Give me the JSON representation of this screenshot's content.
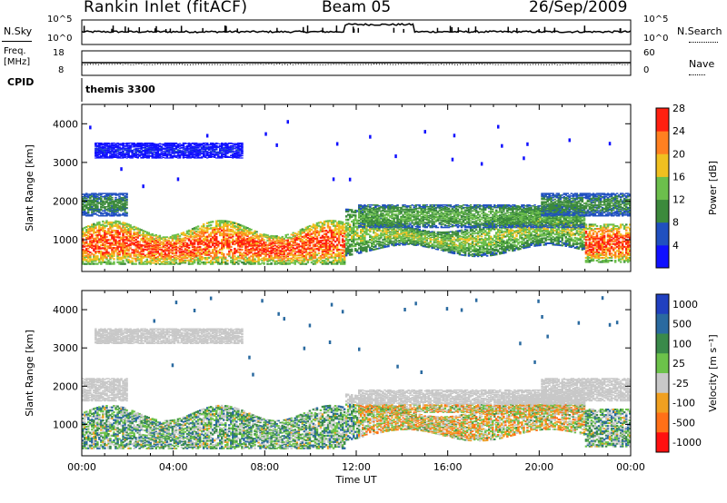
{
  "header": {
    "station": "Rankin Inlet (fitACF)",
    "beam": "Beam 05",
    "date": "26/Sep/2009"
  },
  "top_panels": {
    "nsky_label": "N.Sky",
    "nsky_ticks_left": [
      "10^5",
      "10^0"
    ],
    "nsky_ticks_right": [
      "10^5",
      "10^0"
    ],
    "nsearch_label": "N.Search",
    "freq_label": "Freq.",
    "freq_unit": "[MHz]",
    "freq_ticks": [
      "18",
      "8"
    ],
    "nave_ticks": [
      "60",
      "0"
    ],
    "nave_label": "Nave",
    "cpid_label": "CPID",
    "cpid_value": "themis 3300"
  },
  "chart_data": [
    {
      "type": "heatmap",
      "name": "power",
      "ylabel": "Slant Range [km]",
      "yticks": [
        "1000",
        "2000",
        "3000",
        "4000"
      ],
      "ylim": [
        180,
        4500
      ],
      "xlim_hours": [
        0,
        24
      ],
      "colorbar_label": "Power [dB]",
      "colorbar_ticks": [
        "4",
        "8",
        "12",
        "16",
        "20",
        "24",
        "28"
      ],
      "colorbar_colors": [
        "#1010ff",
        "#2050c0",
        "#3c8a3c",
        "#6cbf4c",
        "#f0c020",
        "#ff8020",
        "#ff2010"
      ]
    },
    {
      "type": "heatmap",
      "name": "velocity",
      "ylabel": "Slant Range [km]",
      "yticks": [
        "1000",
        "2000",
        "3000",
        "4000"
      ],
      "ylim": [
        180,
        4500
      ],
      "xlim_hours": [
        0,
        24
      ],
      "xlabel": "Time UT",
      "xticks": [
        "00:00",
        "04:00",
        "08:00",
        "12:00",
        "16:00",
        "20:00",
        "00:00"
      ],
      "colorbar_label": "Velocity [m s⁻¹]",
      "colorbar_ticks": [
        "1000",
        "500",
        "100",
        "25",
        "-25",
        "-100",
        "-500",
        "-1000"
      ],
      "colorbar_colors": [
        "#2040c0",
        "#2a6aa0",
        "#3a8a4a",
        "#6cc24a",
        "#c8c8c8",
        "#f0a020",
        "#ff7018",
        "#ff1010"
      ]
    }
  ]
}
